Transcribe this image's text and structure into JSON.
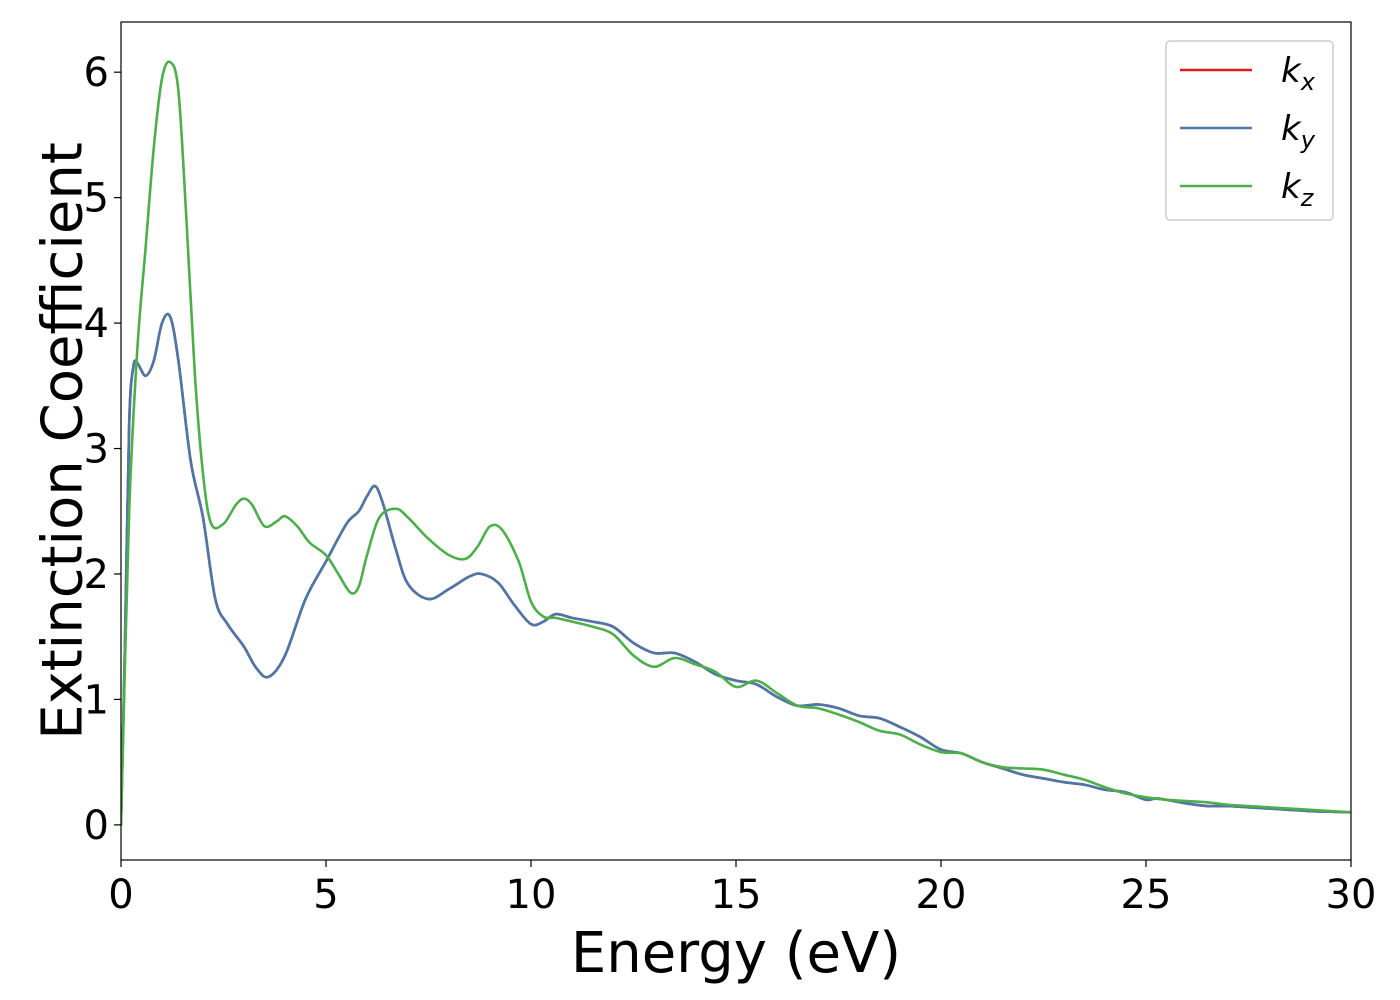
{
  "chart_data": {
    "type": "line",
    "xlabel": "Energy (eV)",
    "ylabel": "Extinction Coefficient",
    "xlim": [
      0,
      30
    ],
    "ylim": [
      -0.28,
      6.4
    ],
    "x_ticks": [
      0,
      5,
      10,
      15,
      20,
      25,
      30
    ],
    "y_ticks": [
      0,
      1,
      2,
      3,
      4,
      5,
      6
    ],
    "grid": false,
    "legend_position": "top-right",
    "series": [
      {
        "name": "k_x",
        "label_base": "k",
        "label_sub": "x",
        "color": "#e41a1c",
        "x": [
          0,
          0.1,
          0.2,
          0.3,
          0.4,
          0.6,
          0.8,
          1.0,
          1.2,
          1.4,
          1.7,
          2.0,
          2.3,
          2.6,
          3.0,
          3.3,
          3.6,
          4.0,
          4.5,
          5.0,
          5.5,
          5.8,
          6.0,
          6.2,
          6.4,
          6.7,
          7.0,
          7.5,
          8.0,
          8.5,
          8.8,
          9.2,
          9.6,
          10.0,
          10.3,
          10.6,
          11.0,
          11.5,
          12.0,
          12.5,
          13.0,
          13.5,
          14.0,
          14.5,
          15.0,
          15.5,
          16.0,
          16.5,
          17.0,
          17.5,
          18.0,
          18.5,
          19.0,
          19.5,
          20.0,
          20.5,
          21.0,
          21.5,
          22.0,
          22.5,
          23.0,
          23.5,
          24.0,
          24.5,
          25.0,
          25.3,
          26.0,
          26.5,
          27.0,
          27.5,
          28.0,
          28.5,
          29.0,
          29.5,
          30.0
        ],
        "y": [
          0,
          1.5,
          3.2,
          3.65,
          3.68,
          3.58,
          3.7,
          4.0,
          4.05,
          3.7,
          2.9,
          2.45,
          1.8,
          1.6,
          1.42,
          1.25,
          1.18,
          1.35,
          1.8,
          2.1,
          2.4,
          2.5,
          2.62,
          2.7,
          2.55,
          2.2,
          1.92,
          1.8,
          1.88,
          1.98,
          2.0,
          1.93,
          1.75,
          1.6,
          1.62,
          1.68,
          1.65,
          1.62,
          1.58,
          1.45,
          1.37,
          1.37,
          1.3,
          1.2,
          1.15,
          1.12,
          1.02,
          0.95,
          0.96,
          0.93,
          0.87,
          0.85,
          0.78,
          0.7,
          0.6,
          0.57,
          0.5,
          0.45,
          0.4,
          0.37,
          0.34,
          0.32,
          0.28,
          0.26,
          0.2,
          0.21,
          0.17,
          0.15,
          0.15,
          0.14,
          0.13,
          0.12,
          0.11,
          0.105,
          0.1
        ]
      },
      {
        "name": "k_y",
        "label_base": "k",
        "label_sub": "y",
        "color": "#4a78a8",
        "x": [
          0,
          0.1,
          0.2,
          0.3,
          0.4,
          0.6,
          0.8,
          1.0,
          1.2,
          1.4,
          1.7,
          2.0,
          2.3,
          2.6,
          3.0,
          3.3,
          3.6,
          4.0,
          4.5,
          5.0,
          5.5,
          5.8,
          6.0,
          6.2,
          6.4,
          6.7,
          7.0,
          7.5,
          8.0,
          8.5,
          8.8,
          9.2,
          9.6,
          10.0,
          10.3,
          10.6,
          11.0,
          11.5,
          12.0,
          12.5,
          13.0,
          13.5,
          14.0,
          14.5,
          15.0,
          15.5,
          16.0,
          16.5,
          17.0,
          17.5,
          18.0,
          18.5,
          19.0,
          19.5,
          20.0,
          20.5,
          21.0,
          21.5,
          22.0,
          22.5,
          23.0,
          23.5,
          24.0,
          24.5,
          25.0,
          25.3,
          26.0,
          26.5,
          27.0,
          27.5,
          28.0,
          28.5,
          29.0,
          29.5,
          30.0
        ],
        "y": [
          0,
          1.5,
          3.2,
          3.65,
          3.68,
          3.58,
          3.7,
          4.0,
          4.05,
          3.7,
          2.9,
          2.45,
          1.8,
          1.6,
          1.42,
          1.25,
          1.18,
          1.35,
          1.8,
          2.1,
          2.4,
          2.5,
          2.62,
          2.7,
          2.55,
          2.2,
          1.92,
          1.8,
          1.88,
          1.98,
          2.0,
          1.93,
          1.75,
          1.6,
          1.62,
          1.68,
          1.65,
          1.62,
          1.58,
          1.45,
          1.37,
          1.37,
          1.3,
          1.2,
          1.15,
          1.12,
          1.02,
          0.95,
          0.96,
          0.93,
          0.87,
          0.85,
          0.78,
          0.7,
          0.6,
          0.57,
          0.5,
          0.45,
          0.4,
          0.37,
          0.34,
          0.32,
          0.28,
          0.26,
          0.2,
          0.21,
          0.17,
          0.15,
          0.15,
          0.14,
          0.13,
          0.12,
          0.11,
          0.105,
          0.1
        ]
      },
      {
        "name": "k_z",
        "label_base": "k",
        "label_sub": "z",
        "color": "#4daf4a",
        "x": [
          0,
          0.2,
          0.4,
          0.6,
          0.8,
          1.0,
          1.2,
          1.4,
          1.6,
          1.8,
          2.0,
          2.2,
          2.5,
          2.8,
          3.0,
          3.2,
          3.5,
          3.8,
          4.0,
          4.3,
          4.6,
          5.0,
          5.3,
          5.6,
          5.8,
          6.0,
          6.3,
          6.7,
          7.0,
          7.5,
          8.0,
          8.4,
          8.7,
          9.0,
          9.3,
          9.7,
          10.0,
          10.3,
          10.6,
          11.0,
          11.5,
          12.0,
          12.5,
          13.0,
          13.5,
          14.0,
          14.5,
          15.0,
          15.5,
          16.0,
          16.5,
          17.0,
          17.5,
          18.0,
          18.5,
          19.0,
          19.5,
          20.0,
          20.5,
          21.0,
          21.5,
          22.0,
          22.5,
          23.0,
          23.5,
          24.0,
          24.5,
          25.0,
          25.5,
          26.0,
          26.5,
          27.0,
          27.5,
          28.0,
          28.5,
          29.0,
          29.5,
          30.0
        ],
        "y": [
          0,
          2.5,
          3.8,
          4.6,
          5.4,
          5.95,
          6.08,
          5.85,
          4.8,
          3.6,
          2.8,
          2.4,
          2.4,
          2.55,
          2.6,
          2.55,
          2.38,
          2.42,
          2.46,
          2.38,
          2.25,
          2.15,
          2.0,
          1.85,
          1.9,
          2.15,
          2.45,
          2.52,
          2.45,
          2.28,
          2.15,
          2.12,
          2.22,
          2.38,
          2.35,
          2.1,
          1.78,
          1.66,
          1.65,
          1.62,
          1.58,
          1.52,
          1.35,
          1.26,
          1.33,
          1.28,
          1.22,
          1.1,
          1.15,
          1.05,
          0.95,
          0.93,
          0.88,
          0.82,
          0.75,
          0.72,
          0.64,
          0.58,
          0.57,
          0.5,
          0.46,
          0.45,
          0.44,
          0.4,
          0.36,
          0.3,
          0.25,
          0.22,
          0.2,
          0.19,
          0.18,
          0.16,
          0.15,
          0.14,
          0.13,
          0.12,
          0.11,
          0.1
        ]
      }
    ]
  }
}
